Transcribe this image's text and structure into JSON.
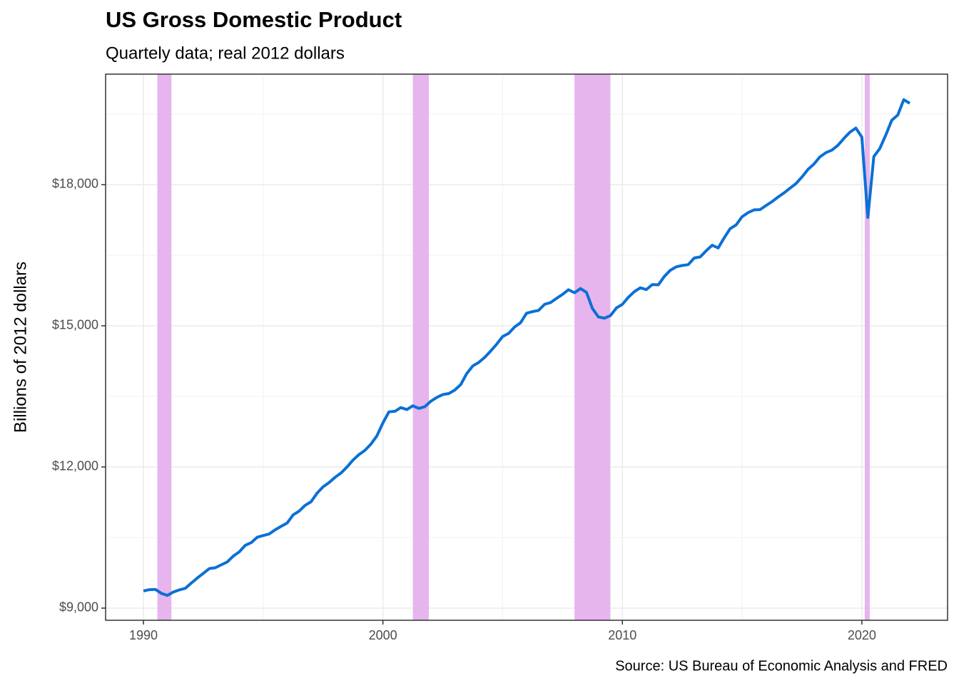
{
  "chart_data": {
    "type": "line",
    "title": "US Gross Domestic Product",
    "subtitle": "Quartely data; real 2012 dollars",
    "y_label": "Billions of 2012 dollars",
    "caption": "Source: US Bureau of Economic Analysis and FRED",
    "color": "#0b70d6",
    "band_color": "#e6b5ee",
    "grid": true,
    "xlim": [
      1988.42,
      2023.58
    ],
    "ylim": [
      8742,
      20348
    ],
    "xticks": [
      1990,
      2000,
      2010,
      2020
    ],
    "xminor": [
      1995,
      2005,
      2015
    ],
    "yticks": [
      {
        "value": 9000,
        "label": "$9,000"
      },
      {
        "value": 12000,
        "label": "$12,000"
      },
      {
        "value": 15000,
        "label": "$15,000"
      },
      {
        "value": 18000,
        "label": "$18,000"
      }
    ],
    "yminor": [
      10500,
      13500,
      16500,
      19500
    ],
    "recessions": [
      [
        1990.58,
        1991.17
      ],
      [
        2001.25,
        2001.92
      ],
      [
        2008.0,
        2009.5
      ],
      [
        2020.12,
        2020.33
      ]
    ],
    "x": [
      1990,
      1990.25,
      1990.5,
      1990.75,
      1991,
      1991.25,
      1991.5,
      1991.75,
      1992,
      1992.25,
      1992.5,
      1992.75,
      1993,
      1993.25,
      1993.5,
      1993.75,
      1994,
      1994.25,
      1994.5,
      1994.75,
      1995,
      1995.25,
      1995.5,
      1995.75,
      1996,
      1996.25,
      1996.5,
      1996.75,
      1997,
      1997.25,
      1997.5,
      1997.75,
      1998,
      1998.25,
      1998.5,
      1998.75,
      1999,
      1999.25,
      1999.5,
      1999.75,
      2000,
      2000.25,
      2000.5,
      2000.75,
      2001,
      2001.25,
      2001.5,
      2001.75,
      2002,
      2002.25,
      2002.5,
      2002.75,
      2003,
      2003.25,
      2003.5,
      2003.75,
      2004,
      2004.25,
      2004.5,
      2004.75,
      2005,
      2005.25,
      2005.5,
      2005.75,
      2006,
      2006.25,
      2006.5,
      2006.75,
      2007,
      2007.25,
      2007.5,
      2007.75,
      2008,
      2008.25,
      2008.5,
      2008.75,
      2009,
      2009.25,
      2009.5,
      2009.75,
      2010,
      2010.25,
      2010.5,
      2010.75,
      2011,
      2011.25,
      2011.5,
      2011.75,
      2012,
      2012.25,
      2012.5,
      2012.75,
      2013,
      2013.25,
      2013.5,
      2013.75,
      2014,
      2014.25,
      2014.5,
      2014.75,
      2015,
      2015.25,
      2015.5,
      2015.75,
      2016,
      2016.25,
      2016.5,
      2016.75,
      2017,
      2017.25,
      2017.5,
      2017.75,
      2018,
      2018.25,
      2018.5,
      2018.75,
      2019,
      2019.25,
      2019.5,
      2019.75,
      2020,
      2020.25,
      2020.5,
      2020.75,
      2021,
      2021.25,
      2021.5,
      2021.75,
      2022
    ],
    "values": [
      9365,
      9392,
      9398,
      9313,
      9270,
      9342,
      9388,
      9422,
      9534,
      9640,
      9739,
      9840,
      9858,
      9920,
      9981,
      10105,
      10195,
      10334,
      10392,
      10506,
      10543,
      10576,
      10665,
      10738,
      10808,
      10981,
      11061,
      11184,
      11261,
      11443,
      11577,
      11668,
      11779,
      11872,
      11999,
      12146,
      12263,
      12353,
      12486,
      12661,
      12935,
      13171,
      13183,
      13262,
      13220,
      13300,
      13245,
      13281,
      13397,
      13478,
      13538,
      13560,
      13634,
      13751,
      13985,
      14146,
      14221,
      14329,
      14464,
      14609,
      14772,
      14839,
      14975,
      15066,
      15267,
      15302,
      15327,
      15456,
      15494,
      15583,
      15667,
      15767,
      15702,
      15792,
      15710,
      15367,
      15188,
      15162,
      15216,
      15379,
      15456,
      15606,
      15726,
      15808,
      15770,
      15876,
      15870,
      16048,
      16180,
      16254,
      16282,
      16300,
      16441,
      16464,
      16595,
      16713,
      16654,
      16868,
      17064,
      17144,
      17318,
      17405,
      17463,
      17469,
      17556,
      17639,
      17736,
      17824,
      17925,
      18022,
      18163,
      18323,
      18438,
      18591,
      18680,
      18733,
      18836,
      18982,
      19113,
      19202,
      19010,
      17303,
      18597,
      18767,
      19055,
      19368,
      19479,
      19806,
      19728
    ]
  }
}
